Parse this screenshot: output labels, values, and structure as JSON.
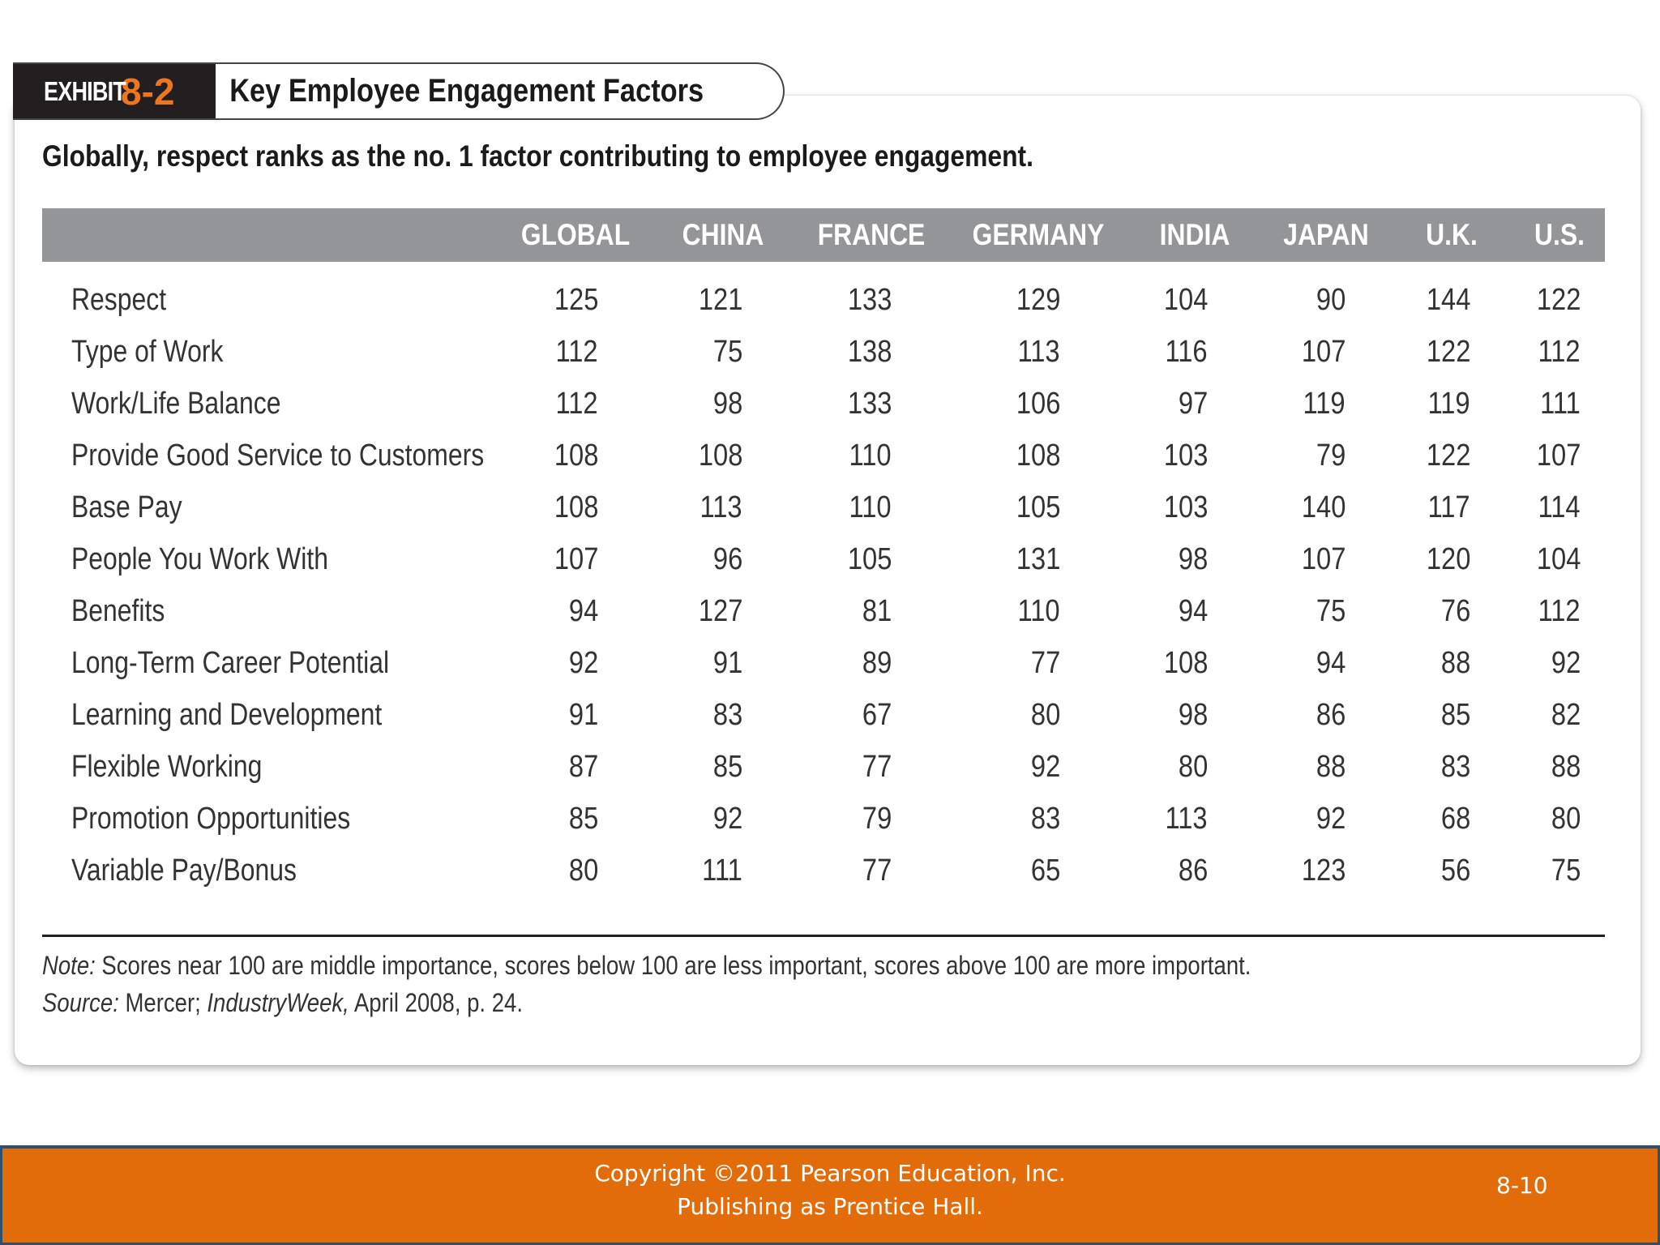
{
  "exhibit": {
    "word": "EXHIBIT",
    "number": "8-2",
    "title": "Key Employee Engagement Factors"
  },
  "subtitle": "Globally, respect ranks as the no. 1 factor contributing to employee engagement.",
  "table": {
    "columns": [
      "GLOBAL",
      "CHINA",
      "FRANCE",
      "GERMANY",
      "INDIA",
      "JAPAN",
      "U.K.",
      "U.S."
    ],
    "rows": [
      {
        "label": "Respect",
        "values": [
          "125",
          "121",
          "133",
          "129",
          "104",
          "90",
          "144",
          "122"
        ]
      },
      {
        "label": "Type of Work",
        "values": [
          "112",
          "75",
          "138",
          "113",
          "116",
          "107",
          "122",
          "112"
        ]
      },
      {
        "label": "Work/Life Balance",
        "values": [
          "112",
          "98",
          "133",
          "106",
          "97",
          "119",
          "119",
          "111"
        ]
      },
      {
        "label": "Provide Good Service to Customers",
        "values": [
          "108",
          "108",
          "110",
          "108",
          "103",
          "79",
          "122",
          "107"
        ]
      },
      {
        "label": "Base Pay",
        "values": [
          "108",
          "113",
          "110",
          "105",
          "103",
          "140",
          "117",
          "114"
        ]
      },
      {
        "label": "People You Work With",
        "values": [
          "107",
          "96",
          "105",
          "131",
          "98",
          "107",
          "120",
          "104"
        ]
      },
      {
        "label": "Benefits",
        "values": [
          "94",
          "127",
          "81",
          "110",
          "94",
          "75",
          "76",
          "112"
        ]
      },
      {
        "label": "Long-Term Career Potential",
        "values": [
          "92",
          "91",
          "89",
          "77",
          "108",
          "94",
          "88",
          "92"
        ]
      },
      {
        "label": "Learning and Development",
        "values": [
          "91",
          "83",
          "67",
          "80",
          "98",
          "86",
          "85",
          "82"
        ]
      },
      {
        "label": "Flexible Working",
        "values": [
          "87",
          "85",
          "77",
          "92",
          "80",
          "88",
          "83",
          "88"
        ]
      },
      {
        "label": "Promotion Opportunities",
        "values": [
          "85",
          "92",
          "79",
          "83",
          "113",
          "92",
          "68",
          "80"
        ]
      },
      {
        "label": "Variable Pay/Bonus",
        "values": [
          "80",
          "111",
          "77",
          "65",
          "86",
          "123",
          "56",
          "75"
        ]
      }
    ]
  },
  "notes": {
    "note_label": "Note:",
    "note_text": " Scores near 100 are middle importance, scores below 100 are less important, scores above 100 are more important.",
    "source_label": "Source:",
    "source_text_1": " Mercer; ",
    "source_publication": "IndustryWeek,",
    "source_text_2": " April 2008, p. 24."
  },
  "footer": {
    "copyright_line1": "Copyright ©2011 Pearson Education, Inc.",
    "copyright_line2": "Publishing as Prentice Hall.",
    "slide_number": "8-10"
  },
  "colors": {
    "accent": "#ee7623",
    "footer_bg": "#e36c0a",
    "header_band": "#939598",
    "exhibit_tag": "#231f20"
  }
}
